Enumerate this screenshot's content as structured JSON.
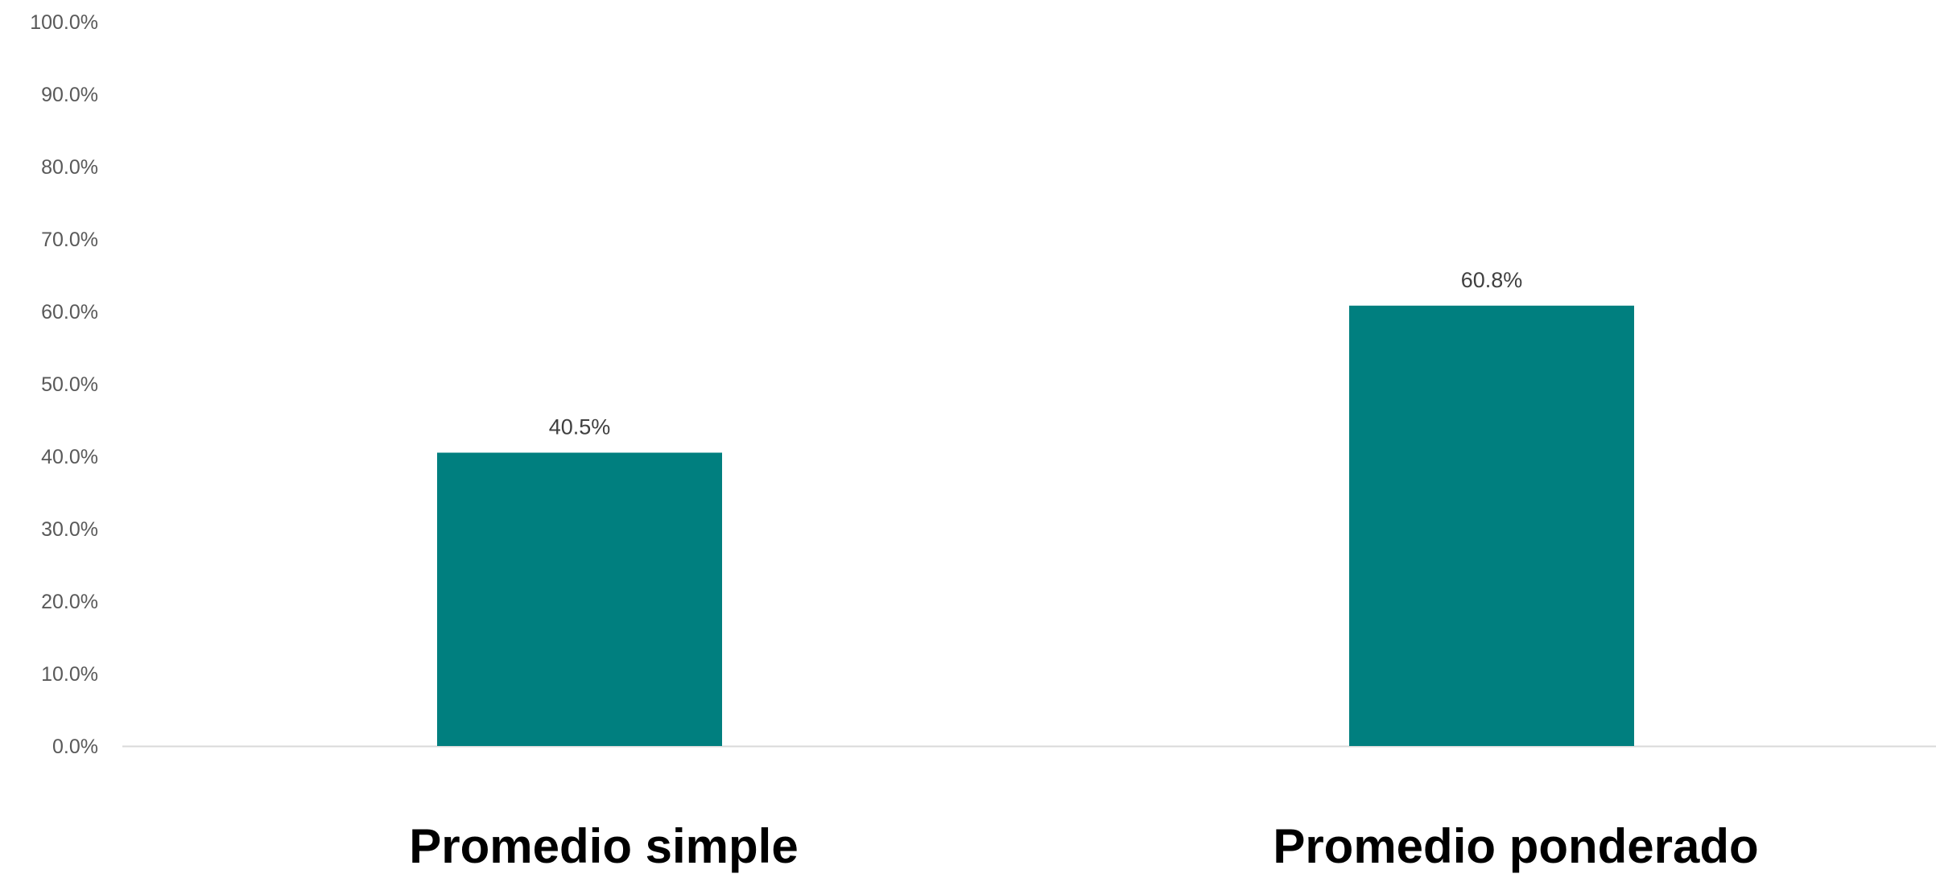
{
  "chart_data": {
    "type": "bar",
    "categories": [
      "Promedio simple",
      "Promedio ponderado"
    ],
    "values": [
      40.5,
      60.8
    ],
    "data_labels": [
      "40.5%",
      "60.8%"
    ],
    "ylim": [
      0,
      100
    ],
    "y_ticks": [
      0,
      10,
      20,
      30,
      40,
      50,
      60,
      70,
      80,
      90,
      100
    ],
    "y_tick_labels": [
      "0.0%",
      "10.0%",
      "20.0%",
      "30.0%",
      "40.0%",
      "50.0%",
      "60.0%",
      "70.0%",
      "80.0%",
      "90.0%",
      "100.0%"
    ],
    "grid": false,
    "legend": "none",
    "colors": {
      "bar": "#007f7f",
      "axis_line": "#d9d9d9"
    }
  }
}
